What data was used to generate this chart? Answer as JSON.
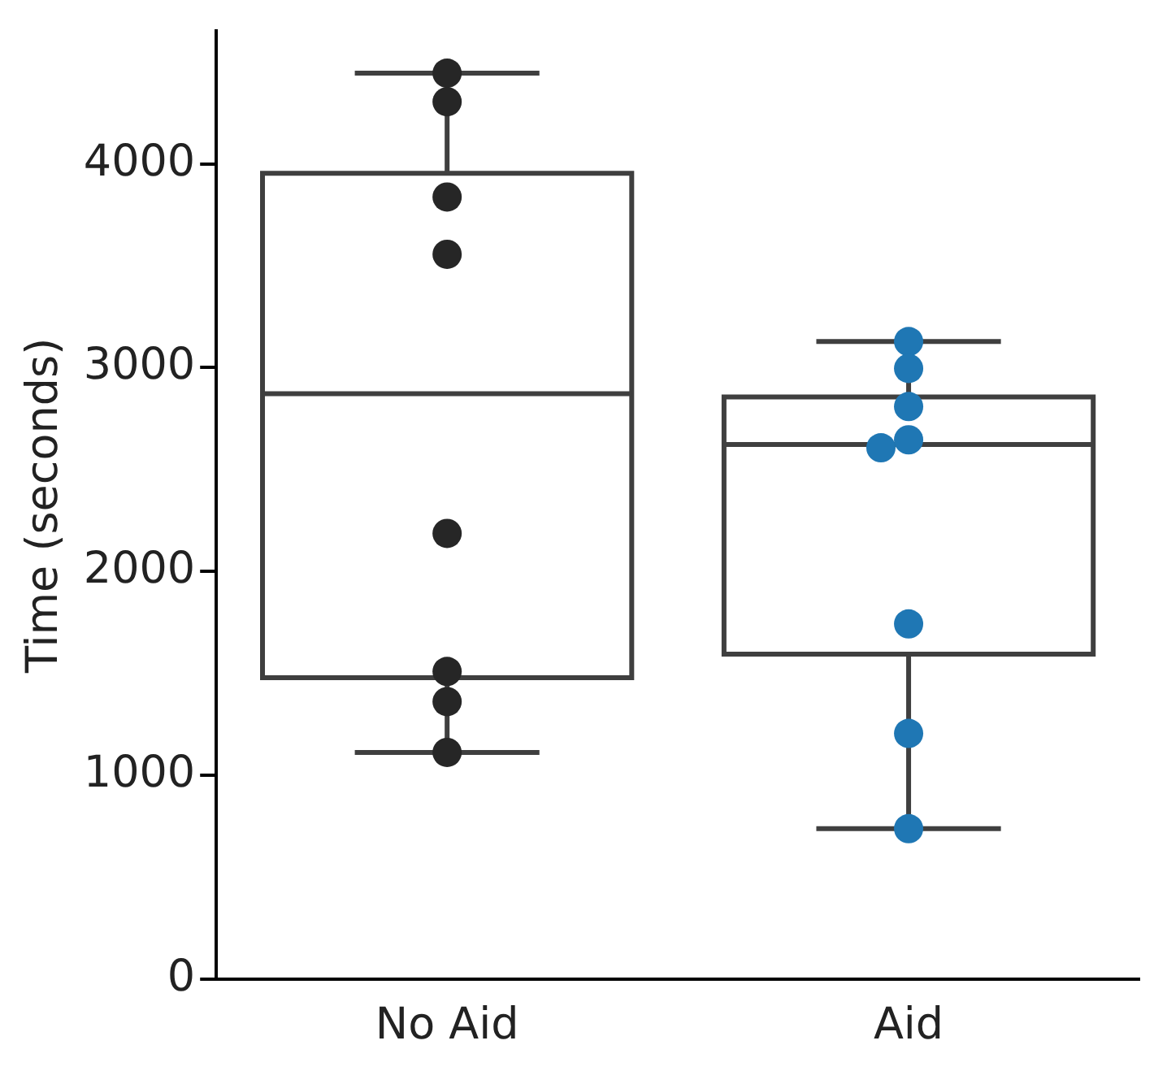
{
  "chart_data": {
    "type": "box",
    "ylabel": "Time (seconds)",
    "categories": [
      "No Aid",
      "Aid"
    ],
    "boxes": [
      {
        "low": 1113,
        "q1": 1479,
        "median": 2872,
        "q3": 3953,
        "high": 4444
      },
      {
        "low": 739,
        "q1": 1595,
        "median": 2623,
        "q3": 2856,
        "high": 3128
      }
    ],
    "series": [
      {
        "type": "scatter",
        "color": "#262626",
        "x": [
          "No Aid",
          "No Aid",
          "No Aid",
          "No Aid",
          "No Aid",
          "No Aid",
          "No Aid",
          "No Aid"
        ],
        "values": [
          4444,
          4304,
          3837,
          3556,
          2187,
          1510,
          1362,
          1113
        ]
      },
      {
        "type": "scatter",
        "color": "#1f77b4",
        "x": [
          "Aid",
          "Aid",
          "Aid",
          "Aid",
          "Aid",
          "Aid",
          "Aid",
          "Aid"
        ],
        "values": [
          3128,
          2996,
          2809,
          2646,
          2607,
          1743,
          1206,
          739
        ]
      }
    ],
    "ylim": [
      0,
      4650
    ],
    "yticks": [
      0,
      1000,
      2000,
      3000,
      4000
    ],
    "grid": false,
    "legend": false,
    "marker": "circle"
  }
}
